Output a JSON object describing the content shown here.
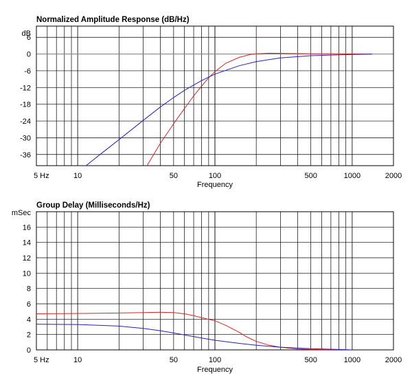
{
  "chart_data": [
    {
      "type": "line",
      "title": "Normalized Amplitude Response (dB/Hz)",
      "xlabel": "Frequency",
      "ylabel": "dB",
      "x_scale": "log",
      "xlim": [
        5,
        2000
      ],
      "ylim": [
        -40,
        10
      ],
      "x_tick_labels": [
        {
          "value": 5,
          "label": "5 Hz"
        },
        {
          "value": 10,
          "label": "10"
        },
        {
          "value": 50,
          "label": "50"
        },
        {
          "value": 100,
          "label": "100"
        },
        {
          "value": 500,
          "label": "500"
        },
        {
          "value": 1000,
          "label": "1000"
        },
        {
          "value": 2000,
          "label": "2000"
        }
      ],
      "y_ticks": [
        6,
        0,
        -6,
        -12,
        -18,
        -24,
        -30,
        -36
      ],
      "reference_lines": [
        {
          "axis": "y",
          "value": 0,
          "color": "#888888"
        }
      ],
      "grid": true,
      "series": [
        {
          "color": "#e02020",
          "points": [
            [
              32,
              -40
            ],
            [
              40,
              -32
            ],
            [
              50,
              -25
            ],
            [
              60,
              -19.5
            ],
            [
              70,
              -15
            ],
            [
              80,
              -11.5
            ],
            [
              90,
              -8.5
            ],
            [
              100,
              -6.3
            ],
            [
              120,
              -3.3
            ],
            [
              150,
              -1.2
            ],
            [
              180,
              -0.2
            ],
            [
              200,
              0.1
            ],
            [
              250,
              0.3
            ],
            [
              300,
              0.25
            ],
            [
              500,
              0.1
            ],
            [
              1000,
              0.05
            ],
            [
              1400,
              0
            ]
          ]
        },
        {
          "color": "#2020c0",
          "points": [
            [
              11.5,
              -40
            ],
            [
              15,
              -35.5
            ],
            [
              20,
              -30.7
            ],
            [
              30,
              -23.8
            ],
            [
              40,
              -19
            ],
            [
              50,
              -15.6
            ],
            [
              60,
              -13
            ],
            [
              80,
              -9.5
            ],
            [
              100,
              -7.2
            ],
            [
              150,
              -4.2
            ],
            [
              200,
              -2.7
            ],
            [
              300,
              -1.4
            ],
            [
              500,
              -0.6
            ],
            [
              1000,
              -0.15
            ],
            [
              1400,
              0
            ]
          ]
        }
      ]
    },
    {
      "type": "line",
      "title": "Group Delay (Milliseconds/Hz)",
      "xlabel": "Frequency",
      "ylabel": "mSec",
      "x_scale": "log",
      "xlim": [
        5,
        2000
      ],
      "ylim": [
        0,
        18
      ],
      "x_tick_labels": [
        {
          "value": 5,
          "label": "5 Hz"
        },
        {
          "value": 10,
          "label": "10"
        },
        {
          "value": 50,
          "label": "50"
        },
        {
          "value": 100,
          "label": "100"
        },
        {
          "value": 500,
          "label": "500"
        },
        {
          "value": 1000,
          "label": "1000"
        },
        {
          "value": 2000,
          "label": "2000"
        }
      ],
      "y_ticks": [
        16,
        14,
        12,
        10,
        8,
        6,
        4,
        2,
        0
      ],
      "grid": true,
      "series": [
        {
          "color": "#e02020",
          "points": [
            [
              5,
              4.7
            ],
            [
              10,
              4.75
            ],
            [
              20,
              4.8
            ],
            [
              30,
              4.85
            ],
            [
              40,
              4.9
            ],
            [
              50,
              4.85
            ],
            [
              60,
              4.7
            ],
            [
              70,
              4.45
            ],
            [
              80,
              4.2
            ],
            [
              100,
              3.8
            ],
            [
              120,
              3.2
            ],
            [
              150,
              2.3
            ],
            [
              170,
              1.7
            ],
            [
              200,
              1.1
            ],
            [
              250,
              0.6
            ],
            [
              300,
              0.35
            ],
            [
              400,
              0.12
            ],
            [
              500,
              0.05
            ],
            [
              800,
              0
            ]
          ]
        },
        {
          "color": "#2020c0",
          "points": [
            [
              5,
              3.35
            ],
            [
              10,
              3.3
            ],
            [
              20,
              3.1
            ],
            [
              30,
              2.8
            ],
            [
              40,
              2.5
            ],
            [
              50,
              2.2
            ],
            [
              60,
              1.95
            ],
            [
              80,
              1.55
            ],
            [
              100,
              1.25
            ],
            [
              150,
              0.85
            ],
            [
              200,
              0.6
            ],
            [
              300,
              0.35
            ],
            [
              500,
              0.15
            ],
            [
              800,
              0.05
            ],
            [
              1000,
              0
            ]
          ]
        }
      ]
    }
  ]
}
